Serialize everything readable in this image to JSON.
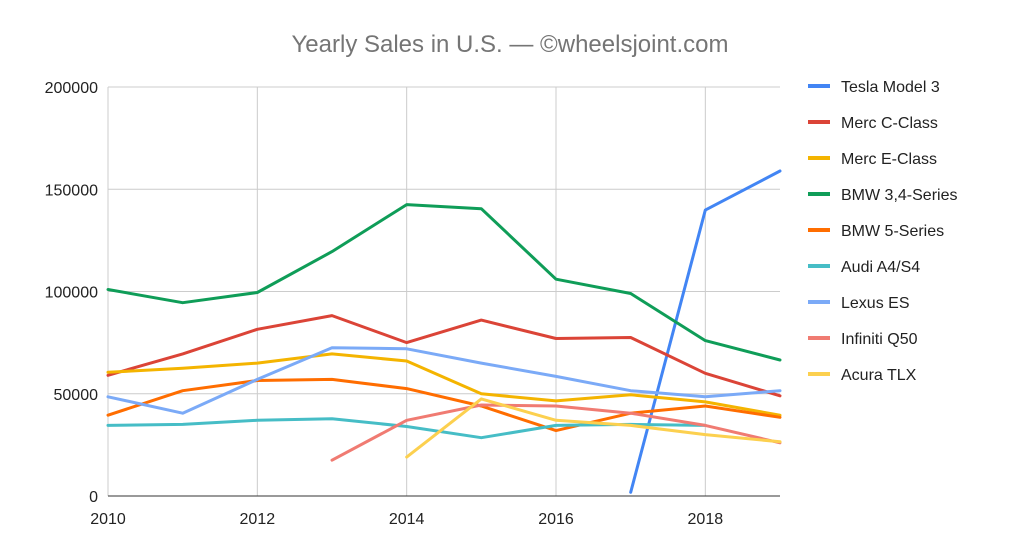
{
  "chart_data": {
    "type": "line",
    "title": "Yearly Sales in U.S. — ©wheelsjoint.com",
    "xlabel": "",
    "ylabel": "",
    "xlim": [
      2010,
      2019
    ],
    "ylim": [
      0,
      200000
    ],
    "x_ticks": [
      "2010",
      "2012",
      "2014",
      "2016",
      "2018"
    ],
    "y_ticks": [
      "0",
      "50000",
      "100000",
      "150000",
      "200000"
    ],
    "grid": true,
    "legend_position": "right",
    "series": [
      {
        "name": "Tesla Model 3",
        "color": "#4285f4",
        "points": [
          [
            2017,
            1800
          ],
          [
            2018,
            139800
          ],
          [
            2019,
            158900
          ]
        ]
      },
      {
        "name": "Merc C-Class",
        "color": "#db4437",
        "points": [
          [
            2010,
            59000
          ],
          [
            2011,
            69500
          ],
          [
            2012,
            81500
          ],
          [
            2013,
            88200
          ],
          [
            2014,
            75000
          ],
          [
            2015,
            86000
          ],
          [
            2016,
            77000
          ],
          [
            2017,
            77500
          ],
          [
            2018,
            60000
          ],
          [
            2019,
            49000
          ]
        ]
      },
      {
        "name": "Merc E-Class",
        "color": "#f4b400",
        "points": [
          [
            2010,
            60500
          ],
          [
            2011,
            62500
          ],
          [
            2012,
            65000
          ],
          [
            2013,
            69500
          ],
          [
            2014,
            66000
          ],
          [
            2015,
            50000
          ],
          [
            2016,
            46500
          ],
          [
            2017,
            49500
          ],
          [
            2018,
            46000
          ],
          [
            2019,
            39500
          ]
        ]
      },
      {
        "name": "BMW 3,4-Series",
        "color": "#0f9d58",
        "points": [
          [
            2010,
            101000
          ],
          [
            2011,
            94500
          ],
          [
            2012,
            99500
          ],
          [
            2013,
            119500
          ],
          [
            2014,
            142500
          ],
          [
            2015,
            140500
          ],
          [
            2016,
            106000
          ],
          [
            2017,
            99000
          ],
          [
            2018,
            76000
          ],
          [
            2019,
            66500
          ]
        ]
      },
      {
        "name": "BMW 5-Series",
        "color": "#ff6d00",
        "points": [
          [
            2010,
            39500
          ],
          [
            2011,
            51500
          ],
          [
            2012,
            56500
          ],
          [
            2013,
            57000
          ],
          [
            2014,
            52500
          ],
          [
            2015,
            44000
          ],
          [
            2016,
            32000
          ],
          [
            2017,
            40500
          ],
          [
            2018,
            44000
          ],
          [
            2019,
            38500
          ]
        ]
      },
      {
        "name": "Audi A4/S4",
        "color": "#46bdc6",
        "points": [
          [
            2010,
            34500
          ],
          [
            2011,
            35000
          ],
          [
            2012,
            37000
          ],
          [
            2013,
            37800
          ],
          [
            2014,
            34000
          ],
          [
            2015,
            28500
          ],
          [
            2016,
            34500
          ],
          [
            2017,
            35000
          ],
          [
            2018,
            34500
          ]
        ]
      },
      {
        "name": "Lexus ES",
        "color": "#7baaf7",
        "points": [
          [
            2010,
            48500
          ],
          [
            2011,
            40500
          ],
          [
            2012,
            57000
          ],
          [
            2013,
            72500
          ],
          [
            2014,
            72000
          ],
          [
            2015,
            65000
          ],
          [
            2016,
            58500
          ],
          [
            2017,
            51500
          ],
          [
            2018,
            48500
          ],
          [
            2019,
            51500
          ]
        ]
      },
      {
        "name": "Infiniti Q50",
        "color": "#f07b72",
        "points": [
          [
            2013,
            17500
          ],
          [
            2014,
            37000
          ],
          [
            2015,
            44500
          ],
          [
            2016,
            44000
          ],
          [
            2017,
            40500
          ],
          [
            2018,
            34500
          ],
          [
            2019,
            26000
          ]
        ]
      },
      {
        "name": "Acura TLX",
        "color": "#fcd04f",
        "points": [
          [
            2014,
            19000
          ],
          [
            2015,
            47500
          ],
          [
            2016,
            37000
          ],
          [
            2017,
            34500
          ],
          [
            2018,
            30000
          ],
          [
            2019,
            26500
          ]
        ]
      }
    ]
  }
}
